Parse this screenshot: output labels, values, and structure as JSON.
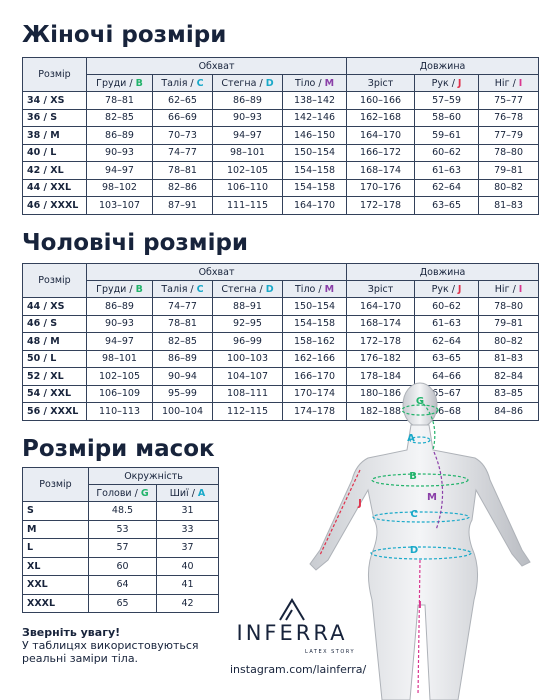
{
  "women": {
    "title": "Жіночі розміри",
    "size_header": "Розмір",
    "groups": [
      "Обхват",
      "Довжина"
    ],
    "columns": [
      {
        "label": "Груди /",
        "letter": "B",
        "color": "#22b36b"
      },
      {
        "label": "Талія /",
        "letter": "C",
        "color": "#19a9c9"
      },
      {
        "label": "Стегна /",
        "letter": "D",
        "color": "#19a9c9"
      },
      {
        "label": "Тіло /",
        "letter": "M",
        "color": "#8a3fa8"
      },
      {
        "label": "Зріст"
      },
      {
        "label": "Рук /",
        "letter": "J",
        "color": "#e0304a"
      },
      {
        "label": "Ніг /",
        "letter": "I",
        "color": "#d9368f"
      }
    ],
    "rows": [
      [
        "34 / XS",
        "78–81",
        "62–65",
        "86–89",
        "138–142",
        "160–166",
        "57–59",
        "75–77"
      ],
      [
        "36 / S",
        "82–85",
        "66–69",
        "90–93",
        "142–146",
        "162–168",
        "58–60",
        "76–78"
      ],
      [
        "38 / M",
        "86–89",
        "70–73",
        "94–97",
        "146–150",
        "164–170",
        "59–61",
        "77–79"
      ],
      [
        "40 / L",
        "90–93",
        "74–77",
        "98–101",
        "150–154",
        "166–172",
        "60–62",
        "78–80"
      ],
      [
        "42 / XL",
        "94–97",
        "78–81",
        "102–105",
        "154–158",
        "168–174",
        "61–63",
        "79–81"
      ],
      [
        "44 / XXL",
        "98–102",
        "82–86",
        "106–110",
        "154–158",
        "170–176",
        "62–64",
        "80–82"
      ],
      [
        "46 / XXXL",
        "103–107",
        "87–91",
        "111–115",
        "164–170",
        "172–178",
        "63–65",
        "81–83"
      ]
    ]
  },
  "men": {
    "title": "Чоловічі розміри",
    "size_header": "Розмір",
    "groups": [
      "Обхват",
      "Довжина"
    ],
    "columns": [
      {
        "label": "Груди /",
        "letter": "B",
        "color": "#22b36b"
      },
      {
        "label": "Талія /",
        "letter": "C",
        "color": "#19a9c9"
      },
      {
        "label": "Стегна /",
        "letter": "D",
        "color": "#19a9c9"
      },
      {
        "label": "Тіло /",
        "letter": "M",
        "color": "#8a3fa8"
      },
      {
        "label": "Зріст"
      },
      {
        "label": "Рук /",
        "letter": "J",
        "color": "#e0304a"
      },
      {
        "label": "Ніг /",
        "letter": "I",
        "color": "#d9368f"
      }
    ],
    "rows": [
      [
        "44 / XS",
        "86–89",
        "74–77",
        "88–91",
        "150–154",
        "164–170",
        "60–62",
        "78–80"
      ],
      [
        "46 / S",
        "90–93",
        "78–81",
        "92–95",
        "154–158",
        "168–174",
        "61–63",
        "79–81"
      ],
      [
        "48 / M",
        "94–97",
        "82–85",
        "96–99",
        "158–162",
        "172–178",
        "62–64",
        "80–82"
      ],
      [
        "50 / L",
        "98–101",
        "86–89",
        "100–103",
        "162–166",
        "176–182",
        "63–65",
        "81–83"
      ],
      [
        "52 / XL",
        "102–105",
        "90–94",
        "104–107",
        "166–170",
        "178–184",
        "64–66",
        "82–84"
      ],
      [
        "54 / XXL",
        "106–109",
        "95–99",
        "108–111",
        "170–174",
        "180–186",
        "65–67",
        "83–85"
      ],
      [
        "56 / XXXL",
        "110–113",
        "100–104",
        "112–115",
        "174–178",
        "182–188",
        "66–68",
        "84–86"
      ]
    ]
  },
  "masks": {
    "title": "Розміри масок",
    "size_header": "Розмір",
    "groups": [
      "Окружність"
    ],
    "columns": [
      {
        "label": "Голови /",
        "letter": "G",
        "color": "#22b36b"
      },
      {
        "label": "Шиї /",
        "letter": "A",
        "color": "#19a9c9"
      }
    ],
    "rows": [
      [
        "S",
        "48.5",
        "31"
      ],
      [
        "M",
        "53",
        "33"
      ],
      [
        "L",
        "57",
        "37"
      ],
      [
        "XL",
        "60",
        "40"
      ],
      [
        "XXL",
        "64",
        "41"
      ],
      [
        "XXXL",
        "65",
        "42"
      ]
    ]
  },
  "notice": {
    "title": "Зверніть увагу!",
    "text": "У таблицях використовуються реальні заміри тіла."
  },
  "logo": {
    "name": "INFERRA",
    "tagline": "LATEX STORY"
  },
  "instagram": "instagram.com/lainferra/",
  "figure_labels": [
    {
      "letter": "G",
      "color": "#22b36b"
    },
    {
      "letter": "A",
      "color": "#19a9c9"
    },
    {
      "letter": "B",
      "color": "#22b36b"
    },
    {
      "letter": "M",
      "color": "#8a3fa8"
    },
    {
      "letter": "C",
      "color": "#19a9c9"
    },
    {
      "letter": "J",
      "color": "#e0304a"
    },
    {
      "letter": "D",
      "color": "#19a9c9"
    },
    {
      "letter": "I",
      "color": "#d9368f"
    }
  ]
}
